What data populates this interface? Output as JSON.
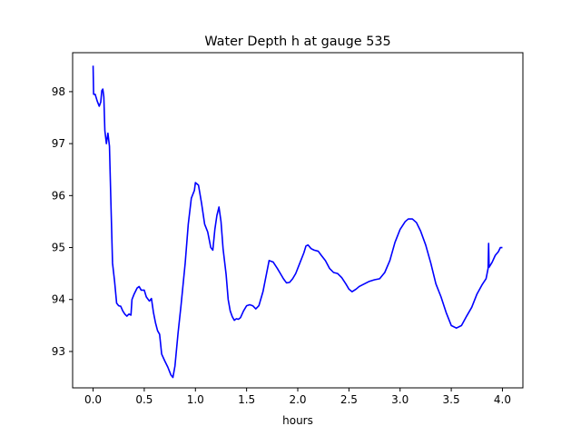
{
  "chart_data": {
    "type": "line",
    "title": "Water Depth h at gauge 535",
    "xlabel": "hours",
    "ylabel": "",
    "xlim": [
      -0.2,
      4.2
    ],
    "ylim": [
      92.3,
      98.75
    ],
    "grid": false,
    "legend": "none",
    "x_ticks": [
      0.0,
      0.5,
      1.0,
      1.5,
      2.0,
      2.5,
      3.0,
      3.5,
      4.0
    ],
    "x_tick_labels": [
      "0.0",
      "0.5",
      "1.0",
      "1.5",
      "2.0",
      "2.5",
      "3.0",
      "3.5",
      "4.0"
    ],
    "y_ticks": [
      93,
      94,
      95,
      96,
      97,
      98
    ],
    "y_tick_labels": [
      "93",
      "94",
      "95",
      "96",
      "97",
      "98"
    ],
    "series": [
      {
        "name": "",
        "color": "#0000ff",
        "points": [
          [
            0.0,
            98.5
          ],
          [
            0.005,
            97.95
          ],
          [
            0.02,
            97.95
          ],
          [
            0.04,
            97.82
          ],
          [
            0.06,
            97.72
          ],
          [
            0.075,
            97.8
          ],
          [
            0.085,
            98.02
          ],
          [
            0.095,
            98.05
          ],
          [
            0.105,
            97.9
          ],
          [
            0.115,
            97.25
          ],
          [
            0.13,
            97.0
          ],
          [
            0.145,
            97.2
          ],
          [
            0.16,
            96.95
          ],
          [
            0.175,
            95.8
          ],
          [
            0.19,
            94.7
          ],
          [
            0.21,
            94.35
          ],
          [
            0.23,
            93.93
          ],
          [
            0.25,
            93.88
          ],
          [
            0.27,
            93.87
          ],
          [
            0.29,
            93.78
          ],
          [
            0.31,
            93.72
          ],
          [
            0.33,
            93.68
          ],
          [
            0.35,
            93.72
          ],
          [
            0.37,
            93.7
          ],
          [
            0.38,
            94.0
          ],
          [
            0.4,
            94.1
          ],
          [
            0.43,
            94.22
          ],
          [
            0.45,
            94.25
          ],
          [
            0.47,
            94.18
          ],
          [
            0.5,
            94.18
          ],
          [
            0.52,
            94.05
          ],
          [
            0.55,
            93.97
          ],
          [
            0.57,
            94.02
          ],
          [
            0.59,
            93.75
          ],
          [
            0.61,
            93.55
          ],
          [
            0.63,
            93.4
          ],
          [
            0.65,
            93.33
          ],
          [
            0.67,
            92.95
          ],
          [
            0.7,
            92.82
          ],
          [
            0.73,
            92.7
          ],
          [
            0.76,
            92.55
          ],
          [
            0.78,
            92.5
          ],
          [
            0.8,
            92.72
          ],
          [
            0.83,
            93.35
          ],
          [
            0.86,
            93.9
          ],
          [
            0.9,
            94.7
          ],
          [
            0.93,
            95.45
          ],
          [
            0.96,
            95.95
          ],
          [
            0.99,
            96.1
          ],
          [
            1.0,
            96.25
          ],
          [
            1.03,
            96.2
          ],
          [
            1.06,
            95.85
          ],
          [
            1.09,
            95.45
          ],
          [
            1.12,
            95.3
          ],
          [
            1.15,
            95.0
          ],
          [
            1.17,
            94.95
          ],
          [
            1.19,
            95.35
          ],
          [
            1.21,
            95.62
          ],
          [
            1.23,
            95.78
          ],
          [
            1.25,
            95.5
          ],
          [
            1.27,
            94.98
          ],
          [
            1.3,
            94.48
          ],
          [
            1.32,
            94.0
          ],
          [
            1.34,
            93.78
          ],
          [
            1.36,
            93.67
          ],
          [
            1.38,
            93.6
          ],
          [
            1.4,
            93.63
          ],
          [
            1.42,
            93.62
          ],
          [
            1.44,
            93.65
          ],
          [
            1.47,
            93.78
          ],
          [
            1.5,
            93.88
          ],
          [
            1.53,
            93.9
          ],
          [
            1.56,
            93.88
          ],
          [
            1.59,
            93.82
          ],
          [
            1.62,
            93.88
          ],
          [
            1.66,
            94.15
          ],
          [
            1.69,
            94.45
          ],
          [
            1.72,
            94.75
          ],
          [
            1.76,
            94.72
          ],
          [
            1.8,
            94.6
          ],
          [
            1.83,
            94.5
          ],
          [
            1.86,
            94.4
          ],
          [
            1.89,
            94.32
          ],
          [
            1.92,
            94.33
          ],
          [
            1.95,
            94.4
          ],
          [
            1.98,
            94.5
          ],
          [
            2.02,
            94.7
          ],
          [
            2.06,
            94.9
          ],
          [
            2.08,
            95.03
          ],
          [
            2.1,
            95.05
          ],
          [
            2.13,
            94.98
          ],
          [
            2.16,
            94.95
          ],
          [
            2.2,
            94.93
          ],
          [
            2.23,
            94.85
          ],
          [
            2.27,
            94.75
          ],
          [
            2.31,
            94.6
          ],
          [
            2.35,
            94.52
          ],
          [
            2.39,
            94.5
          ],
          [
            2.43,
            94.42
          ],
          [
            2.47,
            94.3
          ],
          [
            2.5,
            94.2
          ],
          [
            2.53,
            94.15
          ],
          [
            2.57,
            94.2
          ],
          [
            2.6,
            94.25
          ],
          [
            2.65,
            94.3
          ],
          [
            2.7,
            94.35
          ],
          [
            2.75,
            94.38
          ],
          [
            2.8,
            94.4
          ],
          [
            2.85,
            94.52
          ],
          [
            2.9,
            94.75
          ],
          [
            2.95,
            95.1
          ],
          [
            3.0,
            95.35
          ],
          [
            3.05,
            95.5
          ],
          [
            3.08,
            95.55
          ],
          [
            3.12,
            95.55
          ],
          [
            3.16,
            95.48
          ],
          [
            3.2,
            95.32
          ],
          [
            3.25,
            95.05
          ],
          [
            3.3,
            94.7
          ],
          [
            3.35,
            94.3
          ],
          [
            3.4,
            94.05
          ],
          [
            3.45,
            93.75
          ],
          [
            3.5,
            93.5
          ],
          [
            3.55,
            93.45
          ],
          [
            3.6,
            93.5
          ],
          [
            3.65,
            93.68
          ],
          [
            3.7,
            93.85
          ],
          [
            3.75,
            94.1
          ],
          [
            3.8,
            94.28
          ],
          [
            3.84,
            94.4
          ],
          [
            3.86,
            94.6
          ],
          [
            3.865,
            95.08
          ],
          [
            3.87,
            94.62
          ],
          [
            3.9,
            94.72
          ],
          [
            3.93,
            94.85
          ],
          [
            3.96,
            94.92
          ],
          [
            3.98,
            95.0
          ],
          [
            4.0,
            95.0
          ]
        ]
      }
    ]
  }
}
